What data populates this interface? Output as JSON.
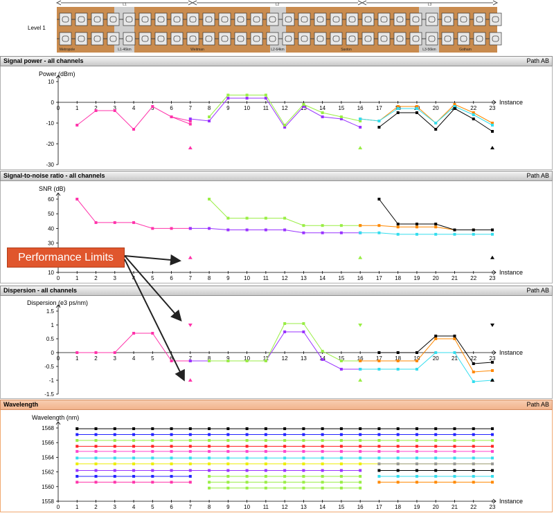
{
  "level_label": "Level 1",
  "topology": {
    "section_labels": [
      "L1",
      "L2",
      "L3"
    ],
    "sites": [
      "Metropole",
      "L1-46km",
      "Weitman",
      "L2-64km",
      "Saxton",
      "L3-56km",
      "Gotham"
    ]
  },
  "callout": "Performance Limits",
  "colors": {
    "magenta": "#ff33aa",
    "violet": "#9933ff",
    "green": "#99ee44",
    "orange": "#ff8800",
    "cyan": "#33ddee",
    "black": "#000000",
    "blue": "#2222ff",
    "red": "#ff2222",
    "yellow": "#eeee00",
    "gray": "#999999",
    "pink": "#ff44cc",
    "dark": "#000000"
  },
  "panels": [
    {
      "title": "Signal power - all channels",
      "path": "Path AB",
      "ylabel": "Power (dBm)",
      "xlabel": "Instance"
    },
    {
      "title": "Signal-to-noise ratio - all channels",
      "path": "Path AB",
      "ylabel": "SNR (dB)",
      "xlabel": "Instance"
    },
    {
      "title": "Dispersion - all channels",
      "path": "Path AB",
      "ylabel": "Dispersion (e3 ps/nm)",
      "xlabel": "Instance"
    },
    {
      "title": "Wavelength",
      "path": "Path AB",
      "ylabel": "Wavelength (nm)",
      "xlabel": "Instance"
    }
  ],
  "chart_data": [
    {
      "type": "line",
      "title": "Signal power - all channels",
      "ylabel": "Power (dBm)",
      "xlabel": "Instance",
      "xlim": [
        0,
        23
      ],
      "ylim": [
        -30,
        10
      ],
      "yticks": [
        10,
        0,
        -10,
        -20,
        -30
      ],
      "series": [
        {
          "color": "magenta",
          "x": [
            1,
            2,
            3,
            4,
            5,
            6,
            7
          ],
          "y": [
            -11,
            -4,
            -4,
            -13,
            -2,
            -7,
            -9
          ]
        },
        {
          "color": "magenta",
          "x": [
            6,
            7
          ],
          "y": [
            -7,
            -10.5
          ]
        },
        {
          "color": "violet",
          "x": [
            7,
            8,
            9,
            10,
            11,
            12,
            13,
            14,
            15,
            16
          ],
          "y": [
            -8,
            -9,
            2,
            2,
            2,
            -12,
            -2,
            -7,
            -8,
            -12
          ]
        },
        {
          "color": "green",
          "x": [
            8,
            9,
            10,
            11,
            12,
            13,
            14,
            15,
            16
          ],
          "y": [
            -7,
            3.5,
            3.5,
            3.5,
            -11,
            -1,
            -5,
            -7,
            -9
          ]
        },
        {
          "color": "orange",
          "x": [
            16,
            17,
            18,
            19,
            20,
            21,
            22,
            23
          ],
          "y": [
            -8,
            -9,
            -2,
            -2,
            -10,
            -1,
            -5,
            -10
          ]
        },
        {
          "color": "cyan",
          "x": [
            16,
            17,
            18,
            19,
            20,
            21,
            22,
            23
          ],
          "y": [
            -8,
            -9,
            -3,
            -3,
            -10,
            -2,
            -6,
            -11
          ]
        },
        {
          "color": "black",
          "x": [
            17,
            18,
            19,
            20,
            21,
            22,
            23
          ],
          "y": [
            -12,
            -5,
            -5,
            -13,
            -3,
            -8,
            -14
          ]
        }
      ],
      "limits": [
        {
          "x": 7,
          "y": -22,
          "color": "magenta"
        },
        {
          "x": 16,
          "y": -22,
          "color": "green"
        },
        {
          "x": 23,
          "y": -22,
          "color": "black"
        }
      ]
    },
    {
      "type": "line",
      "title": "Signal-to-noise ratio - all channels",
      "ylabel": "SNR (dB)",
      "xlabel": "Instance",
      "xlim": [
        0,
        23
      ],
      "ylim": [
        10,
        60
      ],
      "yticks": [
        60,
        50,
        40,
        30,
        20,
        10
      ],
      "series": [
        {
          "color": "magenta",
          "x": [
            1,
            2,
            3,
            4,
            5,
            6,
            7
          ],
          "y": [
            60,
            44,
            44,
            44,
            40,
            40,
            40
          ]
        },
        {
          "color": "violet",
          "x": [
            7,
            8,
            9,
            10,
            11,
            12,
            13,
            14,
            15,
            16
          ],
          "y": [
            40,
            40,
            39,
            39,
            39,
            39,
            37,
            37,
            37,
            37
          ]
        },
        {
          "color": "green",
          "x": [
            8,
            9,
            10,
            11,
            12,
            13,
            14,
            15,
            16
          ],
          "y": [
            60,
            47,
            47,
            47,
            47,
            42,
            42,
            42,
            42
          ]
        },
        {
          "color": "orange",
          "x": [
            16,
            17,
            18,
            19,
            20,
            21,
            22,
            23
          ],
          "y": [
            42,
            42,
            41,
            41,
            41,
            39,
            39,
            39
          ]
        },
        {
          "color": "cyan",
          "x": [
            16,
            17,
            18,
            19,
            20,
            21,
            22,
            23
          ],
          "y": [
            37,
            37,
            36,
            36,
            36,
            36,
            36,
            36
          ]
        },
        {
          "color": "black",
          "x": [
            17,
            18,
            19,
            20,
            21,
            22,
            23
          ],
          "y": [
            60,
            43,
            43,
            43,
            39,
            39,
            39
          ]
        }
      ],
      "limits": [
        {
          "x": 7,
          "y": 20,
          "color": "magenta"
        },
        {
          "x": 16,
          "y": 20,
          "color": "green"
        },
        {
          "x": 23,
          "y": 20,
          "color": "black"
        }
      ]
    },
    {
      "type": "line",
      "title": "Dispersion - all channels",
      "ylabel": "Dispersion (e3 ps/nm)",
      "xlabel": "Instance",
      "xlim": [
        0,
        23
      ],
      "ylim": [
        -1.5,
        1.5
      ],
      "yticks": [
        1.5,
        1,
        0.5,
        0,
        -0.5,
        -1,
        -1.5
      ],
      "series": [
        {
          "color": "magenta",
          "x": [
            1,
            2,
            3,
            4,
            5,
            6,
            7
          ],
          "y": [
            0,
            0,
            0,
            0.7,
            0.7,
            -0.3,
            -0.3
          ]
        },
        {
          "color": "violet",
          "x": [
            7,
            8,
            9,
            10,
            11,
            12,
            13,
            14,
            15,
            16
          ],
          "y": [
            -0.3,
            -0.3,
            -0.3,
            -0.3,
            -0.3,
            0.75,
            0.75,
            -0.25,
            -0.6,
            -0.6
          ]
        },
        {
          "color": "green",
          "x": [
            8,
            9,
            10,
            11,
            12,
            13,
            14,
            15,
            16
          ],
          "y": [
            -0.3,
            -0.3,
            -0.3,
            -0.3,
            1.05,
            1.05,
            0.05,
            -0.3,
            -0.3
          ]
        },
        {
          "color": "orange",
          "x": [
            16,
            17,
            18,
            19,
            20,
            21,
            22,
            23
          ],
          "y": [
            -0.3,
            -0.3,
            -0.3,
            -0.3,
            0.5,
            0.5,
            -0.7,
            -0.65
          ]
        },
        {
          "color": "cyan",
          "x": [
            16,
            17,
            18,
            19,
            20,
            21,
            22,
            23
          ],
          "y": [
            -0.6,
            -0.6,
            -0.6,
            -0.6,
            0,
            0,
            -1.05,
            -1.0
          ]
        },
        {
          "color": "black",
          "x": [
            17,
            18,
            19,
            20,
            21,
            22,
            23
          ],
          "y": [
            0,
            0,
            0,
            0.6,
            0.6,
            -0.4,
            -0.35
          ]
        }
      ],
      "limits": [
        {
          "x": 7,
          "y": 1,
          "color": "magenta",
          "dir": "down"
        },
        {
          "x": 7,
          "y": -1,
          "color": "magenta",
          "dir": "up"
        },
        {
          "x": 16,
          "y": 1,
          "color": "green",
          "dir": "down"
        },
        {
          "x": 16,
          "y": -1,
          "color": "green",
          "dir": "up"
        },
        {
          "x": 23,
          "y": 1,
          "color": "black",
          "dir": "down"
        },
        {
          "x": 23,
          "y": -1,
          "color": "black",
          "dir": "up"
        }
      ]
    },
    {
      "type": "line",
      "title": "Wavelength",
      "ylabel": "Wavelength (nm)",
      "xlabel": "Instance",
      "xlim": [
        0,
        23
      ],
      "ylim": [
        1558,
        1568
      ],
      "yticks": [
        1568,
        1566,
        1564,
        1562,
        1560,
        1558
      ],
      "series": [
        {
          "color": "black",
          "x": [
            1,
            23
          ],
          "y": [
            1567.9,
            1567.9
          ]
        },
        {
          "color": "blue",
          "x": [
            1,
            23
          ],
          "y": [
            1567.1,
            1567.1
          ]
        },
        {
          "color": "green",
          "x": [
            1,
            23
          ],
          "y": [
            1566.3,
            1566.3
          ]
        },
        {
          "color": "red",
          "x": [
            1,
            23
          ],
          "y": [
            1565.5,
            1565.5
          ]
        },
        {
          "color": "pink",
          "x": [
            1,
            23
          ],
          "y": [
            1564.8,
            1564.8
          ]
        },
        {
          "color": "cyan",
          "x": [
            1,
            23
          ],
          "y": [
            1563.9,
            1563.9
          ]
        },
        {
          "color": "yellow",
          "x": [
            1,
            23
          ],
          "y": [
            1563.1,
            1563.1
          ]
        },
        {
          "color": "gray",
          "x": [
            17,
            23
          ],
          "y": [
            1563.1,
            1563.1
          ]
        },
        {
          "color": "violet",
          "x": [
            1,
            16
          ],
          "y": [
            1562.2,
            1562.2
          ]
        },
        {
          "color": "black",
          "x": [
            17,
            23
          ],
          "y": [
            1562.2,
            1562.2
          ]
        },
        {
          "color": "blue",
          "x": [
            1,
            7
          ],
          "y": [
            1561.4,
            1561.4
          ]
        },
        {
          "color": "green",
          "x": [
            8,
            16
          ],
          "y": [
            1561.4,
            1561.4
          ]
        },
        {
          "color": "cyan",
          "x": [
            17,
            23
          ],
          "y": [
            1561.4,
            1561.4
          ]
        },
        {
          "color": "magenta",
          "x": [
            1,
            7
          ],
          "y": [
            1560.6,
            1560.6
          ]
        },
        {
          "color": "green",
          "x": [
            8,
            16
          ],
          "y": [
            1560.6,
            1560.6
          ]
        },
        {
          "color": "orange",
          "x": [
            17,
            23
          ],
          "y": [
            1560.6,
            1560.6
          ]
        },
        {
          "color": "green",
          "x": [
            8,
            16
          ],
          "y": [
            1559.8,
            1559.8
          ]
        }
      ],
      "limits": []
    }
  ]
}
